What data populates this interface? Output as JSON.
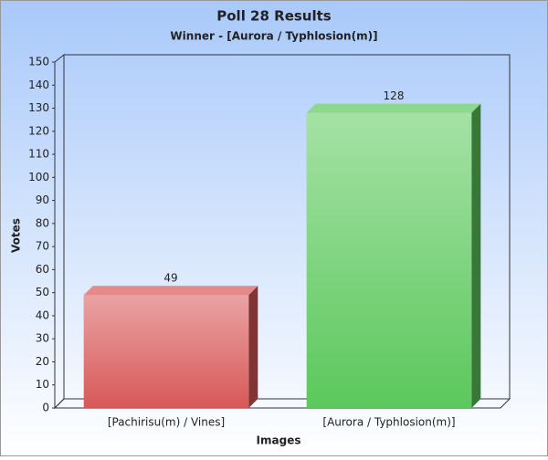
{
  "chart_data": {
    "type": "bar",
    "title": "Poll 28 Results",
    "subtitle": "Winner - [Aurora / Typhlosion(m)]",
    "x_label": "Images",
    "y_label": "Votes",
    "categories": [
      "[Pachirisu(m) / Vines]",
      "[Aurora / Typhlosion(m)]"
    ],
    "values": [
      49,
      128
    ],
    "colors": [
      "#d85858",
      "#5cc85c"
    ],
    "ylim": [
      0,
      150
    ],
    "yticks": [
      0,
      10,
      20,
      30,
      40,
      50,
      60,
      70,
      80,
      90,
      100,
      110,
      120,
      130,
      140,
      150
    ],
    "grid": false
  }
}
